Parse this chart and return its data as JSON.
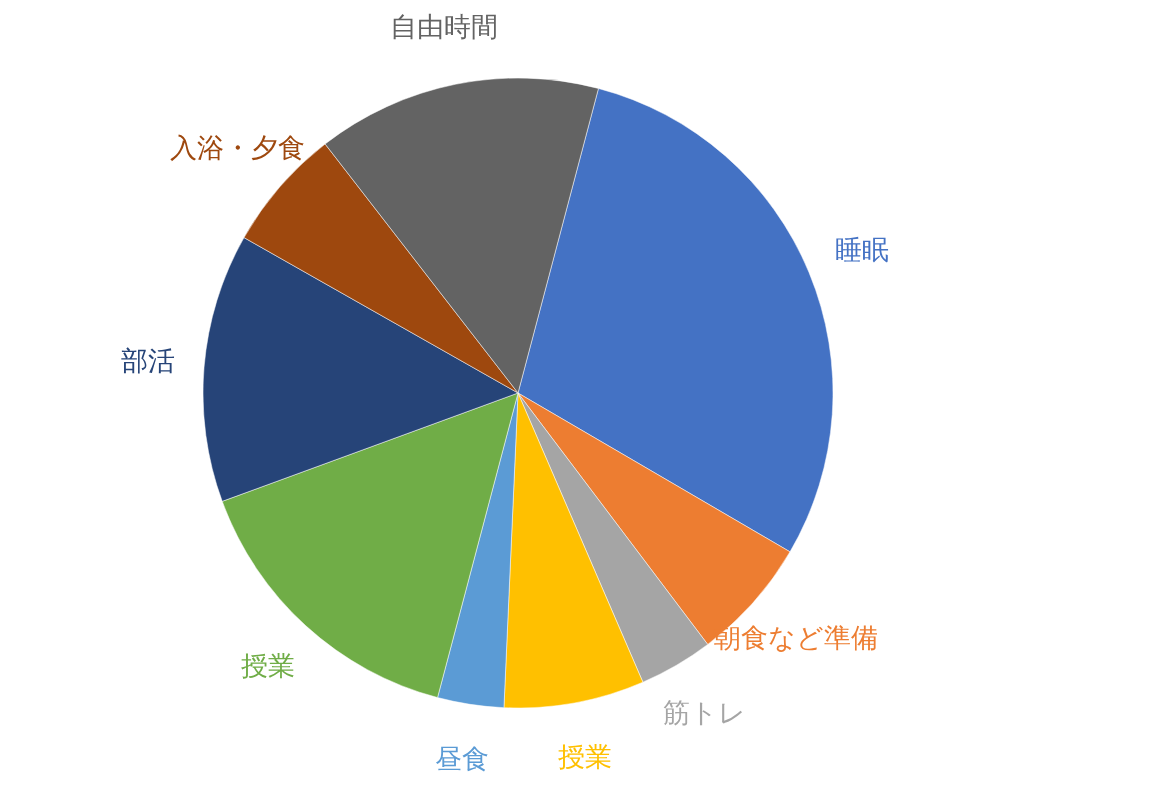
{
  "chart_data": {
    "type": "pie",
    "categories": [
      "睡眠",
      "朝食など準備",
      "筋トレ",
      "授業",
      "昼食",
      "授業",
      "部活",
      "入浴・夕食",
      "自由時間"
    ],
    "values": [
      29.3,
      6.3,
      3.8,
      7.2,
      3.4,
      15.3,
      13.8,
      6.3,
      14.6
    ],
    "colors": [
      "#4472c4",
      "#ed7d31",
      "#a5a5a5",
      "#ffc000",
      "#5b9bd5",
      "#70ad47",
      "#264478",
      "#9e480e",
      "#636363"
    ],
    "legend": false
  }
}
